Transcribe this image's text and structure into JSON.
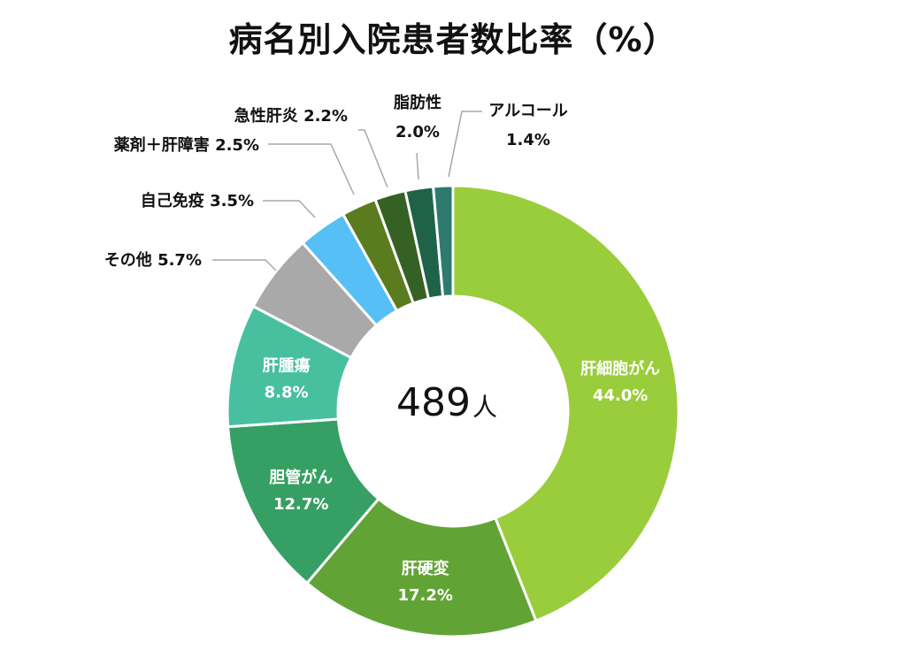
{
  "chart_data": {
    "type": "pie",
    "style": "donut",
    "title": "病名別入院患者数比率（%）",
    "center_value": "489",
    "center_unit": "人",
    "slices": [
      {
        "label": "肝細胞がん",
        "value": 44.0,
        "value_label": "44.0%",
        "color": "#9acd3b",
        "label_position": "inside"
      },
      {
        "label": "肝硬変",
        "value": 17.2,
        "value_label": "17.2%",
        "color": "#62a336",
        "label_position": "inside"
      },
      {
        "label": "胆管がん",
        "value": 12.7,
        "value_label": "12.7%",
        "color": "#36a064",
        "label_position": "inside"
      },
      {
        "label": "肝腫瘍",
        "value": 8.8,
        "value_label": "8.8%",
        "color": "#48c0a0",
        "label_position": "inside"
      },
      {
        "label": "その他",
        "value": 5.7,
        "value_label": "5.7%",
        "color": "#a9a9a9",
        "label_position": "outside"
      },
      {
        "label": "自己免疫",
        "value": 3.5,
        "value_label": "3.5%",
        "color": "#55bff6",
        "label_position": "outside"
      },
      {
        "label": "薬剤＋肝障害",
        "value": 2.5,
        "value_label": "2.5%",
        "color": "#5b7c1e",
        "label_position": "outside"
      },
      {
        "label": "急性肝炎",
        "value": 2.2,
        "value_label": "2.2%",
        "color": "#366125",
        "label_position": "outside"
      },
      {
        "label": "脂肪性",
        "value": 2.0,
        "value_label": "2.0%",
        "color": "#1e6347",
        "label_position": "outside"
      },
      {
        "label": "アルコール",
        "value": 1.4,
        "value_label": "1.4%",
        "color": "#2e7a6e",
        "label_position": "outside"
      }
    ]
  }
}
